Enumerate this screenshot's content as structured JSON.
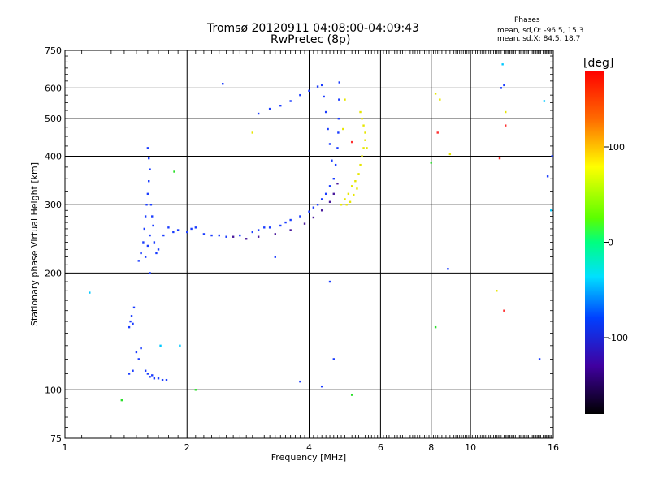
{
  "header": {
    "title_line1": "Tromsø 20120911 04:08:00-04:09:43",
    "title_line2": "RwPretec (8p)",
    "stats_title": "Phases",
    "stats_O": "mean, sd,O: -96.5, 15.3",
    "stats_X": "mean, sd,X:  84.5, 18.7"
  },
  "colorbar": {
    "label": "[deg]",
    "ticks": [
      "100",
      "0",
      "-100"
    ],
    "tick_values": [
      100,
      0,
      -100
    ],
    "range": [
      -180,
      180
    ]
  },
  "chart_data": {
    "type": "scatter",
    "xlabel": "Frequency [MHz]",
    "ylabel": "Stationary phase Virtual Height [km]",
    "xscale": "log",
    "yscale": "log",
    "xlim": [
      1,
      16
    ],
    "ylim": [
      75,
      750
    ],
    "x_ticks": [
      1,
      2,
      4,
      6,
      8,
      10,
      16
    ],
    "y_ticks": [
      75,
      100,
      200,
      300,
      400,
      500,
      600,
      750
    ],
    "grid": true,
    "series": [
      {
        "color": "#1a3cff",
        "points": [
          [
            1.45,
            150
          ],
          [
            1.47,
            148
          ],
          [
            1.46,
            155
          ],
          [
            1.48,
            163
          ],
          [
            1.44,
            145
          ],
          [
            1.5,
            125
          ],
          [
            1.52,
            120
          ],
          [
            1.54,
            128
          ],
          [
            1.47,
            112
          ],
          [
            1.44,
            110
          ],
          [
            1.58,
            112
          ],
          [
            1.62,
            108
          ],
          [
            1.66,
            107
          ],
          [
            1.7,
            107
          ],
          [
            1.74,
            106
          ],
          [
            1.78,
            106
          ],
          [
            1.6,
            110
          ],
          [
            1.64,
            109
          ],
          [
            1.52,
            215
          ],
          [
            1.54,
            225
          ],
          [
            1.56,
            240
          ],
          [
            1.57,
            260
          ],
          [
            1.58,
            280
          ],
          [
            1.59,
            300
          ],
          [
            1.6,
            320
          ],
          [
            1.61,
            345
          ],
          [
            1.62,
            370
          ],
          [
            1.61,
            395
          ],
          [
            1.6,
            420
          ],
          [
            1.63,
            300
          ],
          [
            1.64,
            280
          ],
          [
            1.65,
            265
          ],
          [
            1.62,
            250
          ],
          [
            1.6,
            235
          ],
          [
            1.58,
            220
          ],
          [
            1.62,
            200
          ],
          [
            1.66,
            240
          ],
          [
            1.68,
            225
          ],
          [
            1.7,
            230
          ],
          [
            1.75,
            250
          ],
          [
            1.8,
            262
          ],
          [
            1.85,
            255
          ],
          [
            1.9,
            258
          ],
          [
            2.0,
            255
          ],
          [
            2.05,
            260
          ],
          [
            2.1,
            262
          ],
          [
            2.2,
            252
          ],
          [
            2.3,
            250
          ],
          [
            2.4,
            250
          ],
          [
            2.5,
            248
          ],
          [
            2.7,
            250
          ],
          [
            2.9,
            255
          ],
          [
            3.0,
            258
          ],
          [
            3.1,
            262
          ],
          [
            3.2,
            262
          ],
          [
            3.4,
            265
          ],
          [
            3.5,
            270
          ],
          [
            3.6,
            274
          ],
          [
            3.8,
            280
          ],
          [
            4.0,
            288
          ],
          [
            4.1,
            295
          ],
          [
            4.2,
            300
          ],
          [
            4.3,
            310
          ],
          [
            4.4,
            320
          ],
          [
            4.5,
            335
          ],
          [
            4.6,
            350
          ],
          [
            4.65,
            380
          ],
          [
            4.7,
            420
          ],
          [
            4.72,
            460
          ],
          [
            4.73,
            500
          ],
          [
            4.74,
            560
          ],
          [
            4.75,
            620
          ],
          [
            4.55,
            390
          ],
          [
            4.5,
            430
          ],
          [
            4.45,
            470
          ],
          [
            4.4,
            520
          ],
          [
            4.35,
            570
          ],
          [
            4.3,
            610
          ],
          [
            3.0,
            515
          ],
          [
            3.2,
            530
          ],
          [
            3.4,
            540
          ],
          [
            3.6,
            555
          ],
          [
            3.8,
            575
          ],
          [
            4.0,
            590
          ],
          [
            4.2,
            605
          ],
          [
            2.45,
            615
          ],
          [
            3.8,
            105
          ],
          [
            4.3,
            102
          ],
          [
            4.6,
            120
          ],
          [
            4.5,
            190
          ],
          [
            3.3,
            220
          ],
          [
            8.8,
            205
          ],
          [
            11.9,
            600
          ],
          [
            12.1,
            610
          ],
          [
            14.8,
            120
          ],
          [
            15.5,
            355
          ],
          [
            15.9,
            400
          ]
        ]
      },
      {
        "color": "#4a1a9c",
        "points": [
          [
            2.6,
            248
          ],
          [
            2.8,
            245
          ],
          [
            3.0,
            248
          ],
          [
            3.3,
            252
          ],
          [
            3.6,
            258
          ],
          [
            3.9,
            268
          ],
          [
            4.1,
            278
          ],
          [
            4.3,
            290
          ],
          [
            4.5,
            305
          ],
          [
            4.6,
            320
          ],
          [
            4.7,
            340
          ]
        ]
      },
      {
        "color": "#e6e600",
        "points": [
          [
            4.8,
            300
          ],
          [
            4.9,
            310
          ],
          [
            5.0,
            320
          ],
          [
            5.1,
            335
          ],
          [
            5.2,
            345
          ],
          [
            5.3,
            360
          ],
          [
            5.35,
            380
          ],
          [
            5.4,
            400
          ],
          [
            5.45,
            420
          ],
          [
            5.5,
            440
          ],
          [
            5.55,
            420
          ],
          [
            5.5,
            460
          ],
          [
            5.45,
            480
          ],
          [
            5.4,
            500
          ],
          [
            5.35,
            520
          ],
          [
            4.95,
            300
          ],
          [
            5.05,
            305
          ],
          [
            5.15,
            318
          ],
          [
            5.25,
            330
          ],
          [
            4.85,
            470
          ],
          [
            4.9,
            560
          ],
          [
            2.9,
            460
          ],
          [
            8.2,
            580
          ],
          [
            8.4,
            560
          ],
          [
            8.9,
            405
          ],
          [
            12.2,
            520
          ],
          [
            11.6,
            180
          ]
        ]
      },
      {
        "color": "#2adf2a",
        "points": [
          [
            1.38,
            94
          ],
          [
            1.86,
            365
          ],
          [
            8.2,
            145
          ],
          [
            8.0,
            385
          ],
          [
            5.1,
            97
          ],
          [
            2.1,
            100
          ]
        ]
      },
      {
        "color": "#ff3030",
        "points": [
          [
            5.1,
            435
          ],
          [
            8.3,
            460
          ],
          [
            11.8,
            395
          ],
          [
            12.1,
            160
          ],
          [
            12.2,
            480
          ]
        ]
      },
      {
        "color": "#00c8ff",
        "points": [
          [
            1.15,
            178
          ],
          [
            1.72,
            130
          ],
          [
            1.92,
            130
          ],
          [
            12.0,
            690
          ],
          [
            15.2,
            555
          ],
          [
            15.8,
            290
          ]
        ]
      }
    ]
  }
}
